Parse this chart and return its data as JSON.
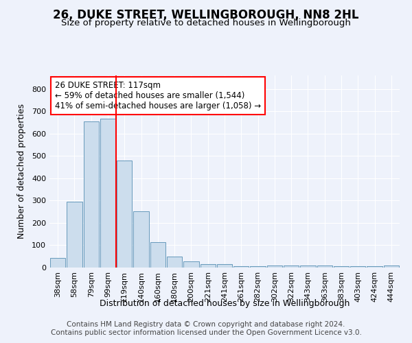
{
  "title": "26, DUKE STREET, WELLINGBOROUGH, NN8 2HL",
  "subtitle": "Size of property relative to detached houses in Wellingborough",
  "xlabel": "Distribution of detached houses by size in Wellingborough",
  "ylabel": "Number of detached properties",
  "categories": [
    "38sqm",
    "58sqm",
    "79sqm",
    "99sqm",
    "119sqm",
    "140sqm",
    "160sqm",
    "180sqm",
    "200sqm",
    "221sqm",
    "241sqm",
    "261sqm",
    "282sqm",
    "302sqm",
    "322sqm",
    "343sqm",
    "363sqm",
    "383sqm",
    "403sqm",
    "424sqm",
    "444sqm"
  ],
  "values": [
    43,
    295,
    655,
    665,
    478,
    252,
    113,
    50,
    27,
    15,
    15,
    7,
    7,
    8,
    8,
    8,
    8,
    5,
    5,
    5,
    8
  ],
  "bar_color": "#ccdded",
  "bar_edge_color": "#6699bb",
  "annotation_box_text": [
    "26 DUKE STREET: 117sqm",
    "← 59% of detached houses are smaller (1,544)",
    "41% of semi-detached houses are larger (1,058) →"
  ],
  "annotation_box_color": "white",
  "annotation_box_edge_color": "red",
  "vline_color": "red",
  "vline_x_index": 4,
  "background_color": "#eef2fb",
  "grid_color": "white",
  "ylim": [
    0,
    860
  ],
  "yticks": [
    0,
    100,
    200,
    300,
    400,
    500,
    600,
    700,
    800
  ],
  "footer_line1": "Contains HM Land Registry data © Crown copyright and database right 2024.",
  "footer_line2": "Contains public sector information licensed under the Open Government Licence v3.0.",
  "title_fontsize": 12,
  "subtitle_fontsize": 9.5,
  "xlabel_fontsize": 9,
  "ylabel_fontsize": 9,
  "tick_fontsize": 8,
  "annotation_fontsize": 8.5,
  "footer_fontsize": 7.5
}
